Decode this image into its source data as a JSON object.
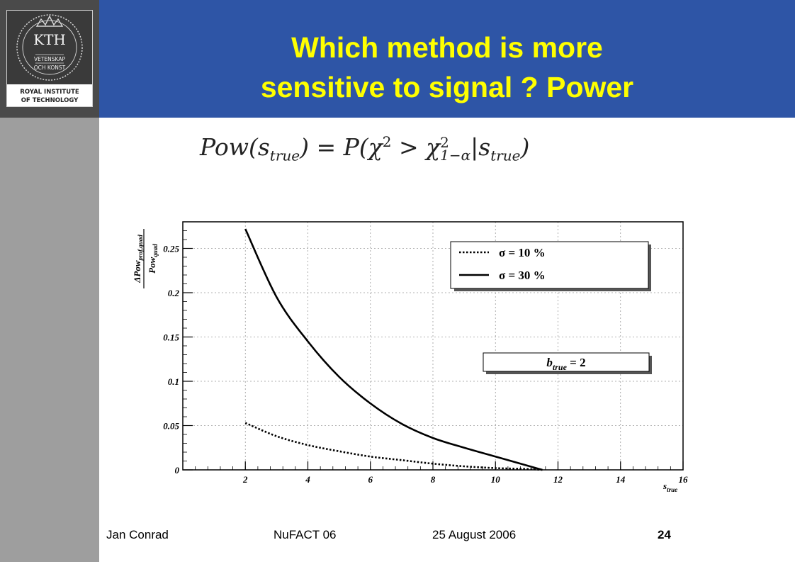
{
  "title": {
    "line1": "Which method is more",
    "line2": "sensitive to signal ? Power"
  },
  "logo": {
    "initials": "KTH",
    "motto_line1": "VETENSKAP",
    "motto_line2": "OCH KONST",
    "name_line1": "ROYAL INSTITUTE",
    "name_line2": "OF TECHNOLOGY"
  },
  "formula": {
    "lhs_func": "Pow",
    "lhs_var": "s",
    "lhs_sub": "true",
    "eq": "=",
    "prob": "P",
    "chi": "χ",
    "sq": "2",
    "gt": ">",
    "chi_crit_sub": "1−α",
    "given": "|",
    "rhs_var": "s",
    "rhs_sub": "true"
  },
  "chart_data": {
    "type": "line",
    "ylabel_num_main": "ΔPow",
    "ylabel_num_sub": "prof,quad",
    "ylabel_den_main": "Pow",
    "ylabel_den_sub": "quad",
    "xlabel_main": "s",
    "xlabel_sub": "true",
    "xlim": [
      0,
      16
    ],
    "ylim": [
      0,
      0.28
    ],
    "x_ticks": [
      "2",
      "4",
      "6",
      "8",
      "10",
      "12",
      "14",
      "16"
    ],
    "y_ticks": [
      "0",
      "0.05",
      "0.1",
      "0.15",
      "0.2",
      "0.25"
    ],
    "grid": true,
    "legend_placement": "top-right",
    "series": [
      {
        "name": "σ = 10 %",
        "style": "dotted",
        "x": [
          2,
          3,
          4,
          5,
          6,
          7,
          8,
          9,
          10,
          11,
          11.5
        ],
        "y": [
          0.053,
          0.038,
          0.028,
          0.021,
          0.015,
          0.011,
          0.007,
          0.004,
          0.002,
          0.001,
          0.0
        ]
      },
      {
        "name": "σ = 30 %",
        "style": "solid",
        "x": [
          2,
          3,
          4,
          5,
          6,
          7,
          8,
          9,
          10,
          11,
          11.5
        ],
        "y": [
          0.272,
          0.195,
          0.145,
          0.105,
          0.075,
          0.052,
          0.036,
          0.025,
          0.015,
          0.005,
          0.0
        ]
      }
    ],
    "annotation_main": "b",
    "annotation_sub": "true",
    "annotation_rest": " = 2"
  },
  "footer": {
    "author": "Jan Conrad",
    "event": "NuFACT 06",
    "date": "25 August 2006",
    "page": "24"
  }
}
